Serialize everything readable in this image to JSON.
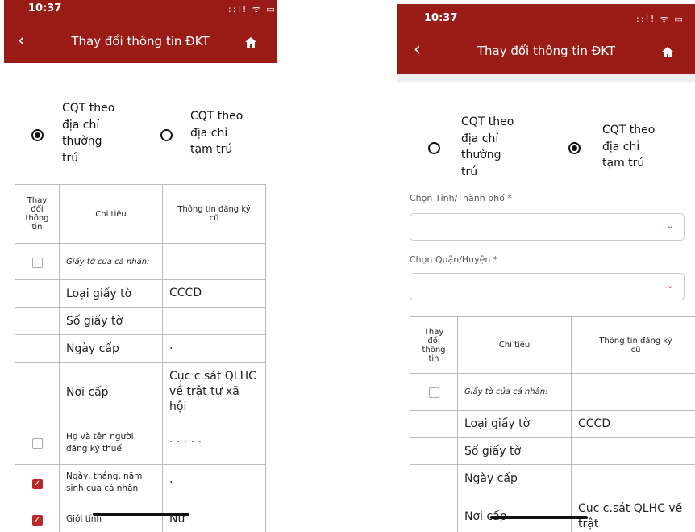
{
  "screens": [
    {
      "time": "10:37",
      "status": "::!! ᯤ ▭",
      "title": "Thay đổi thông tin ĐKT",
      "radios": [
        {
          "label": "CQT theo\nđịa chỉ\nthường\ntrú",
          "selected": true
        },
        {
          "label": "CQT theo\nđịa chỉ\ntạm trú",
          "selected": false
        }
      ],
      "table": {
        "headers": [
          "Thay\nđổi\nthông\ntin",
          "Chi tiêu",
          "Thông tin đăng ký\ncũ"
        ],
        "rows": [
          {
            "check": "unchecked",
            "label": "Giấy tờ của cá nhân:",
            "value": ""
          },
          {
            "check": "none",
            "label": "Loại giấy tờ",
            "value": "CCCD"
          },
          {
            "check": "none",
            "label": "Số giấy tờ",
            "value": ""
          },
          {
            "check": "none",
            "label": "Ngày cấp",
            "value": "·"
          },
          {
            "check": "none",
            "label": "Nơi cấp",
            "value": "Cục c.sát QLHC về trật tự xã hội"
          },
          {
            "check": "unchecked",
            "label": "Họ và tên người đăng ký thuế",
            "value": "· · · · ·"
          },
          {
            "check": "checked",
            "label": "Ngày, tháng, năm sinh của cá nhân",
            "value": "·"
          },
          {
            "check": "checked",
            "label": "Giới tính",
            "value": "Nữ"
          }
        ]
      }
    },
    {
      "time": "10:37",
      "status": "::!! ᯤ ▭",
      "title": "Thay đổi thông tin ĐKT",
      "radios": [
        {
          "label": "CQT theo\nđịa chỉ\nthường\ntrú",
          "selected": false
        },
        {
          "label": "CQT theo\nđịa chỉ\ntạm trú",
          "selected": true
        }
      ],
      "province_label": "Chọn Tỉnh/Thành phố *",
      "province_value": "",
      "district_label": "Chọn Quận/Huyện *",
      "district_value": "",
      "table": {
        "headers": [
          "Thay\nđổi\nthông\ntin",
          "Chi tiêu",
          "Thông tin đăng ký\ncũ"
        ],
        "rows": [
          {
            "check": "unchecked",
            "label": "Giấy tờ của cá nhân:",
            "value": ""
          },
          {
            "check": "none",
            "label": "Loại giấy tờ",
            "value": "CCCD"
          },
          {
            "check": "none",
            "label": "Số giấy tờ",
            "value": ""
          },
          {
            "check": "none",
            "label": "Ngày cấp",
            "value": ""
          },
          {
            "check": "none",
            "label": "Nơi cấp",
            "value": "Cục c.sát QLHC về trật"
          }
        ]
      }
    }
  ],
  "colors": {
    "header": "#991c16",
    "accent": "#b8292a"
  }
}
